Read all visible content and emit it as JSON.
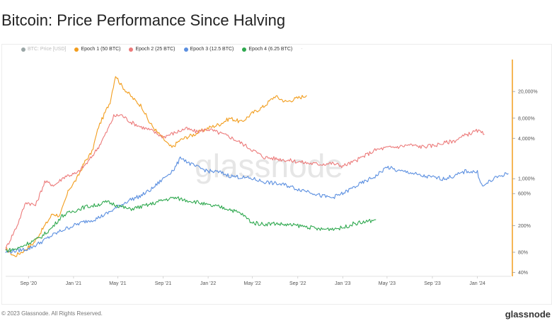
{
  "title": "Bitcoin: Price Performance Since Halving",
  "legend": [
    {
      "label": "BTC: Price [USD]",
      "color": "#9aa6a6",
      "muted": true
    },
    {
      "label": "Epoch 1 (50 BTC)",
      "color": "#f29d1d",
      "muted": false
    },
    {
      "label": "Epoch 2 (25 BTC)",
      "color": "#ec7a7a",
      "muted": false
    },
    {
      "label": "Epoch 3 (12.5 BTC)",
      "color": "#5b8fe0",
      "muted": false
    },
    {
      "label": "Epoch 4 (6.25 BTC)",
      "color": "#2ea84e",
      "muted": false
    }
  ],
  "legend_more": "-",
  "watermark": "glassnode",
  "footer": {
    "copyright": "© 2023 Glassnode. All Rights Reserved.",
    "brand": "glassnode"
  },
  "chart_data": {
    "type": "line",
    "x_axis": {
      "tick_labels": [
        "Sep '20",
        "Jan '21",
        "May '21",
        "Sep '21",
        "Jan '22",
        "May '22",
        "Sep '22",
        "Jan '23",
        "May '23",
        "Sep '23",
        "Jan '24"
      ],
      "range": [
        "2020-07",
        "2024-04"
      ]
    },
    "y_axis": {
      "scale": "log",
      "position": "right",
      "tick_labels": [
        "20,000%",
        "8,000%",
        "4,000%",
        "1,000%",
        "600%",
        "200%",
        "80%",
        "40%"
      ],
      "tick_values": [
        20000,
        8000,
        4000,
        1000,
        600,
        200,
        80,
        40
      ],
      "range": [
        35,
        60000
      ],
      "axis_color": "#f29d1d"
    },
    "grid": false,
    "legend_position": "top-left",
    "series": [
      {
        "name": "Epoch 1 (50 BTC)",
        "color": "#f29d1d",
        "points": [
          [
            "2020-07-01",
            90
          ],
          [
            "2020-07-25",
            70
          ],
          [
            "2020-08-20",
            85
          ],
          [
            "2020-09-15",
            110
          ],
          [
            "2020-10-10",
            180
          ],
          [
            "2020-11-05",
            300
          ],
          [
            "2020-11-25",
            280
          ],
          [
            "2020-12-20",
            700
          ],
          [
            "2021-01-10",
            1000
          ],
          [
            "2021-02-01",
            1800
          ],
          [
            "2021-02-20",
            2500
          ],
          [
            "2021-03-10",
            6000
          ],
          [
            "2021-03-25",
            9000
          ],
          [
            "2021-04-10",
            14000
          ],
          [
            "2021-04-25",
            35000
          ],
          [
            "2021-05-10",
            25000
          ],
          [
            "2021-05-25",
            20000
          ],
          [
            "2021-06-15",
            15000
          ],
          [
            "2021-07-05",
            12000
          ],
          [
            "2021-07-25",
            7000
          ],
          [
            "2021-08-15",
            5000
          ],
          [
            "2021-09-01",
            4000
          ],
          [
            "2021-09-15",
            3200
          ],
          [
            "2021-09-25",
            2900
          ],
          [
            "2021-10-15",
            3700
          ],
          [
            "2021-11-05",
            4200
          ],
          [
            "2021-11-25",
            4600
          ],
          [
            "2021-12-15",
            5200
          ],
          [
            "2022-01-05",
            5800
          ],
          [
            "2022-02-01",
            6500
          ],
          [
            "2022-03-01",
            8000
          ],
          [
            "2022-04-01",
            7000
          ],
          [
            "2022-05-01",
            9500
          ],
          [
            "2022-06-01",
            12000
          ],
          [
            "2022-07-01",
            17000
          ],
          [
            "2022-08-01",
            14000
          ],
          [
            "2022-09-01",
            16000
          ],
          [
            "2022-09-25",
            17500
          ]
        ]
      },
      {
        "name": "Epoch 2 (25 BTC)",
        "color": "#ec7a7a",
        "points": [
          [
            "2020-07-01",
            90
          ],
          [
            "2020-08-01",
            200
          ],
          [
            "2020-08-25",
            450
          ],
          [
            "2020-09-20",
            400
          ],
          [
            "2020-10-15",
            900
          ],
          [
            "2020-11-10",
            800
          ],
          [
            "2020-12-10",
            1100
          ],
          [
            "2021-01-10",
            1200
          ],
          [
            "2021-02-10",
            1800
          ],
          [
            "2021-03-10",
            3000
          ],
          [
            "2021-04-01",
            5000
          ],
          [
            "2021-04-20",
            8500
          ],
          [
            "2021-05-10",
            9000
          ],
          [
            "2021-06-05",
            7000
          ],
          [
            "2021-07-01",
            6000
          ],
          [
            "2021-08-01",
            5200
          ],
          [
            "2021-09-01",
            4200
          ],
          [
            "2021-10-01",
            4800
          ],
          [
            "2021-11-01",
            5600
          ],
          [
            "2021-12-01",
            5000
          ],
          [
            "2022-01-01",
            5500
          ],
          [
            "2022-02-01",
            4800
          ],
          [
            "2022-03-01",
            4200
          ],
          [
            "2022-04-01",
            3400
          ],
          [
            "2022-05-01",
            2700
          ],
          [
            "2022-06-01",
            2100
          ],
          [
            "2022-07-01",
            2000
          ],
          [
            "2022-08-01",
            1900
          ],
          [
            "2022-09-01",
            1800
          ],
          [
            "2022-10-01",
            1700
          ],
          [
            "2022-11-01",
            1650
          ],
          [
            "2022-12-01",
            1700
          ],
          [
            "2023-01-01",
            1550
          ],
          [
            "2023-02-01",
            1800
          ],
          [
            "2023-03-01",
            2200
          ],
          [
            "2023-04-01",
            2700
          ],
          [
            "2023-05-01",
            2900
          ],
          [
            "2023-06-01",
            3000
          ],
          [
            "2023-07-01",
            3200
          ],
          [
            "2023-08-01",
            3000
          ],
          [
            "2023-09-01",
            3100
          ],
          [
            "2023-10-01",
            3400
          ],
          [
            "2023-11-01",
            3700
          ],
          [
            "2023-12-01",
            4500
          ],
          [
            "2024-01-01",
            5200
          ],
          [
            "2024-01-20",
            4600
          ]
        ]
      },
      {
        "name": "Epoch 3 (12.5 BTC)",
        "color": "#5b8fe0",
        "points": [
          [
            "2020-07-01",
            80
          ],
          [
            "2020-08-01",
            85
          ],
          [
            "2020-09-01",
            90
          ],
          [
            "2020-10-01",
            110
          ],
          [
            "2020-11-01",
            140
          ],
          [
            "2020-12-01",
            170
          ],
          [
            "2021-01-01",
            200
          ],
          [
            "2021-02-01",
            230
          ],
          [
            "2021-03-01",
            250
          ],
          [
            "2021-04-01",
            300
          ],
          [
            "2021-05-01",
            380
          ],
          [
            "2021-06-01",
            480
          ],
          [
            "2021-07-01",
            550
          ],
          [
            "2021-08-01",
            700
          ],
          [
            "2021-09-01",
            1000
          ],
          [
            "2021-10-01",
            1400
          ],
          [
            "2021-10-20",
            2100
          ],
          [
            "2021-11-10",
            1700
          ],
          [
            "2021-12-01",
            1500
          ],
          [
            "2022-01-01",
            1300
          ],
          [
            "2022-02-01",
            1250
          ],
          [
            "2022-03-01",
            1100
          ],
          [
            "2022-04-01",
            1050
          ],
          [
            "2022-05-01",
            1000
          ],
          [
            "2022-06-01",
            900
          ],
          [
            "2022-07-01",
            850
          ],
          [
            "2022-08-01",
            800
          ],
          [
            "2022-09-01",
            700
          ],
          [
            "2022-10-01",
            650
          ],
          [
            "2022-11-01",
            560
          ],
          [
            "2022-12-01",
            520
          ],
          [
            "2023-01-01",
            600
          ],
          [
            "2023-02-01",
            750
          ],
          [
            "2023-03-01",
            900
          ],
          [
            "2023-04-01",
            1100
          ],
          [
            "2023-05-01",
            1500
          ],
          [
            "2023-06-01",
            1300
          ],
          [
            "2023-07-01",
            1250
          ],
          [
            "2023-08-01",
            1100
          ],
          [
            "2023-09-01",
            1050
          ],
          [
            "2023-10-01",
            1000
          ],
          [
            "2023-11-01",
            1100
          ],
          [
            "2023-12-01",
            1300
          ],
          [
            "2024-01-01",
            1250
          ],
          [
            "2024-01-15",
            750
          ],
          [
            "2024-02-01",
            900
          ],
          [
            "2024-03-01",
            1100
          ],
          [
            "2024-03-25",
            1200
          ]
        ]
      },
      {
        "name": "Epoch 4 (6.25 BTC)",
        "color": "#2ea84e",
        "points": [
          [
            "2020-07-01",
            85
          ],
          [
            "2020-08-01",
            90
          ],
          [
            "2020-09-01",
            110
          ],
          [
            "2020-10-01",
            130
          ],
          [
            "2020-11-01",
            180
          ],
          [
            "2020-12-01",
            280
          ],
          [
            "2021-01-01",
            330
          ],
          [
            "2021-02-01",
            380
          ],
          [
            "2021-03-01",
            400
          ],
          [
            "2021-04-01",
            450
          ],
          [
            "2021-05-01",
            400
          ],
          [
            "2021-06-01",
            350
          ],
          [
            "2021-07-01",
            380
          ],
          [
            "2021-08-01",
            420
          ],
          [
            "2021-09-01",
            480
          ],
          [
            "2021-10-01",
            520
          ],
          [
            "2021-11-01",
            480
          ],
          [
            "2021-12-01",
            450
          ],
          [
            "2022-01-01",
            400
          ],
          [
            "2022-02-01",
            380
          ],
          [
            "2022-03-01",
            350
          ],
          [
            "2022-04-01",
            300
          ],
          [
            "2022-05-01",
            220
          ],
          [
            "2022-06-01",
            210
          ],
          [
            "2022-07-01",
            215
          ],
          [
            "2022-08-01",
            205
          ],
          [
            "2022-09-01",
            200
          ],
          [
            "2022-10-01",
            190
          ],
          [
            "2022-11-01",
            175
          ],
          [
            "2022-12-01",
            180
          ],
          [
            "2023-01-01",
            185
          ],
          [
            "2023-02-01",
            215
          ],
          [
            "2023-03-01",
            225
          ],
          [
            "2023-04-01",
            245
          ]
        ]
      }
    ]
  }
}
